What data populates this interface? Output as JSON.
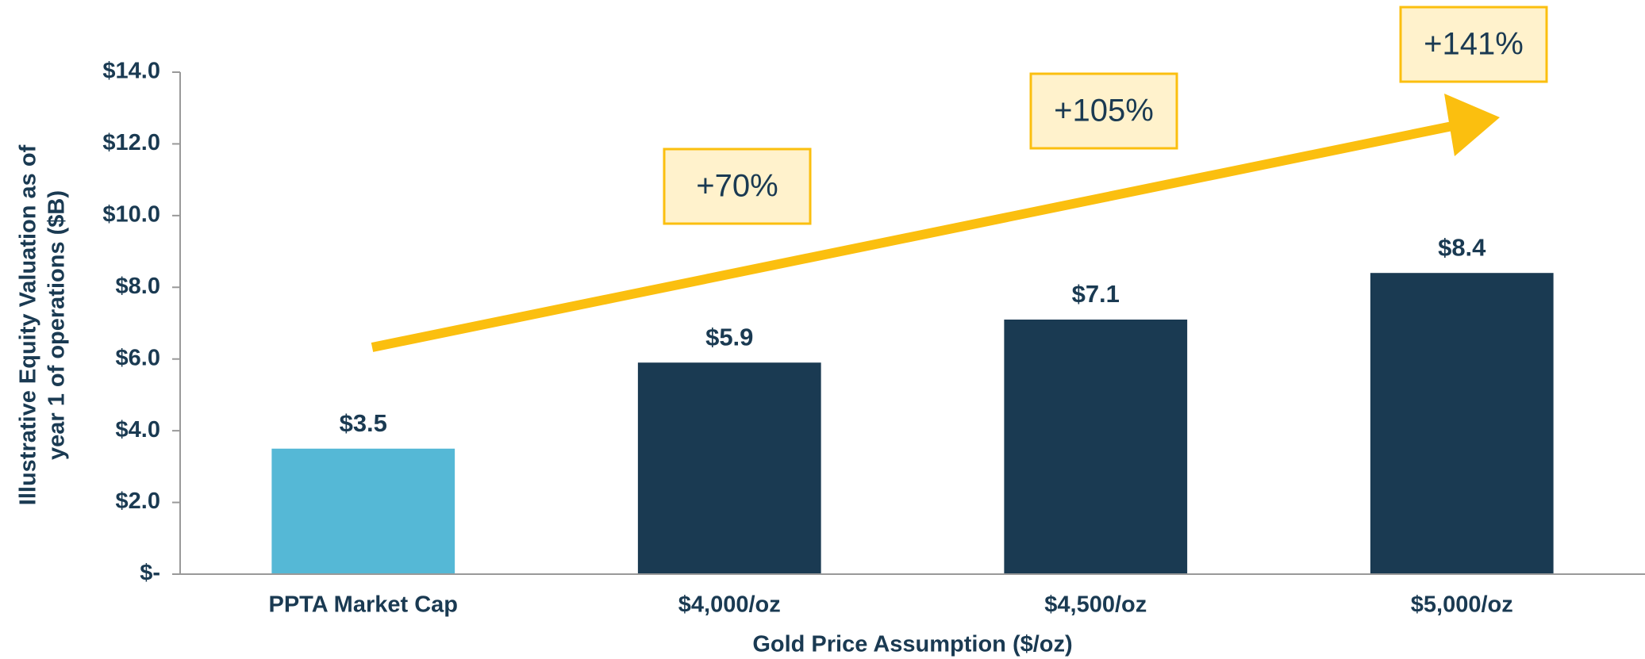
{
  "chart_data": {
    "type": "bar",
    "categories": [
      "PPTA Market Cap",
      "$4,000/oz",
      "$4,500/oz",
      "$5,000/oz"
    ],
    "values": [
      3.5,
      5.9,
      7.1,
      8.4
    ],
    "value_labels": [
      "$3.5",
      "$5.9",
      "$7.1",
      "$8.4"
    ],
    "colors": [
      "#55b8d6",
      "#1a3a52",
      "#1a3a52",
      "#1a3a52"
    ],
    "ylim": [
      0,
      14
    ],
    "yticks": [
      {
        "value": 0,
        "label": "$-"
      },
      {
        "value": 2,
        "label": "$2.0"
      },
      {
        "value": 4,
        "label": "$4.0"
      },
      {
        "value": 6,
        "label": "$6.0"
      },
      {
        "value": 8,
        "label": "$8.0"
      },
      {
        "value": 10,
        "label": "$10.0"
      },
      {
        "value": 12,
        "label": "$12.0"
      },
      {
        "value": 14,
        "label": "$14.0"
      }
    ],
    "x_label": "Gold Price Assumption ($/oz)",
    "y_label": [
      "Illustrative Equity Valuation as of",
      "year 1 of operations ($B)"
    ],
    "annotations": [
      "+70%",
      "+105%",
      "+141%"
    ]
  }
}
